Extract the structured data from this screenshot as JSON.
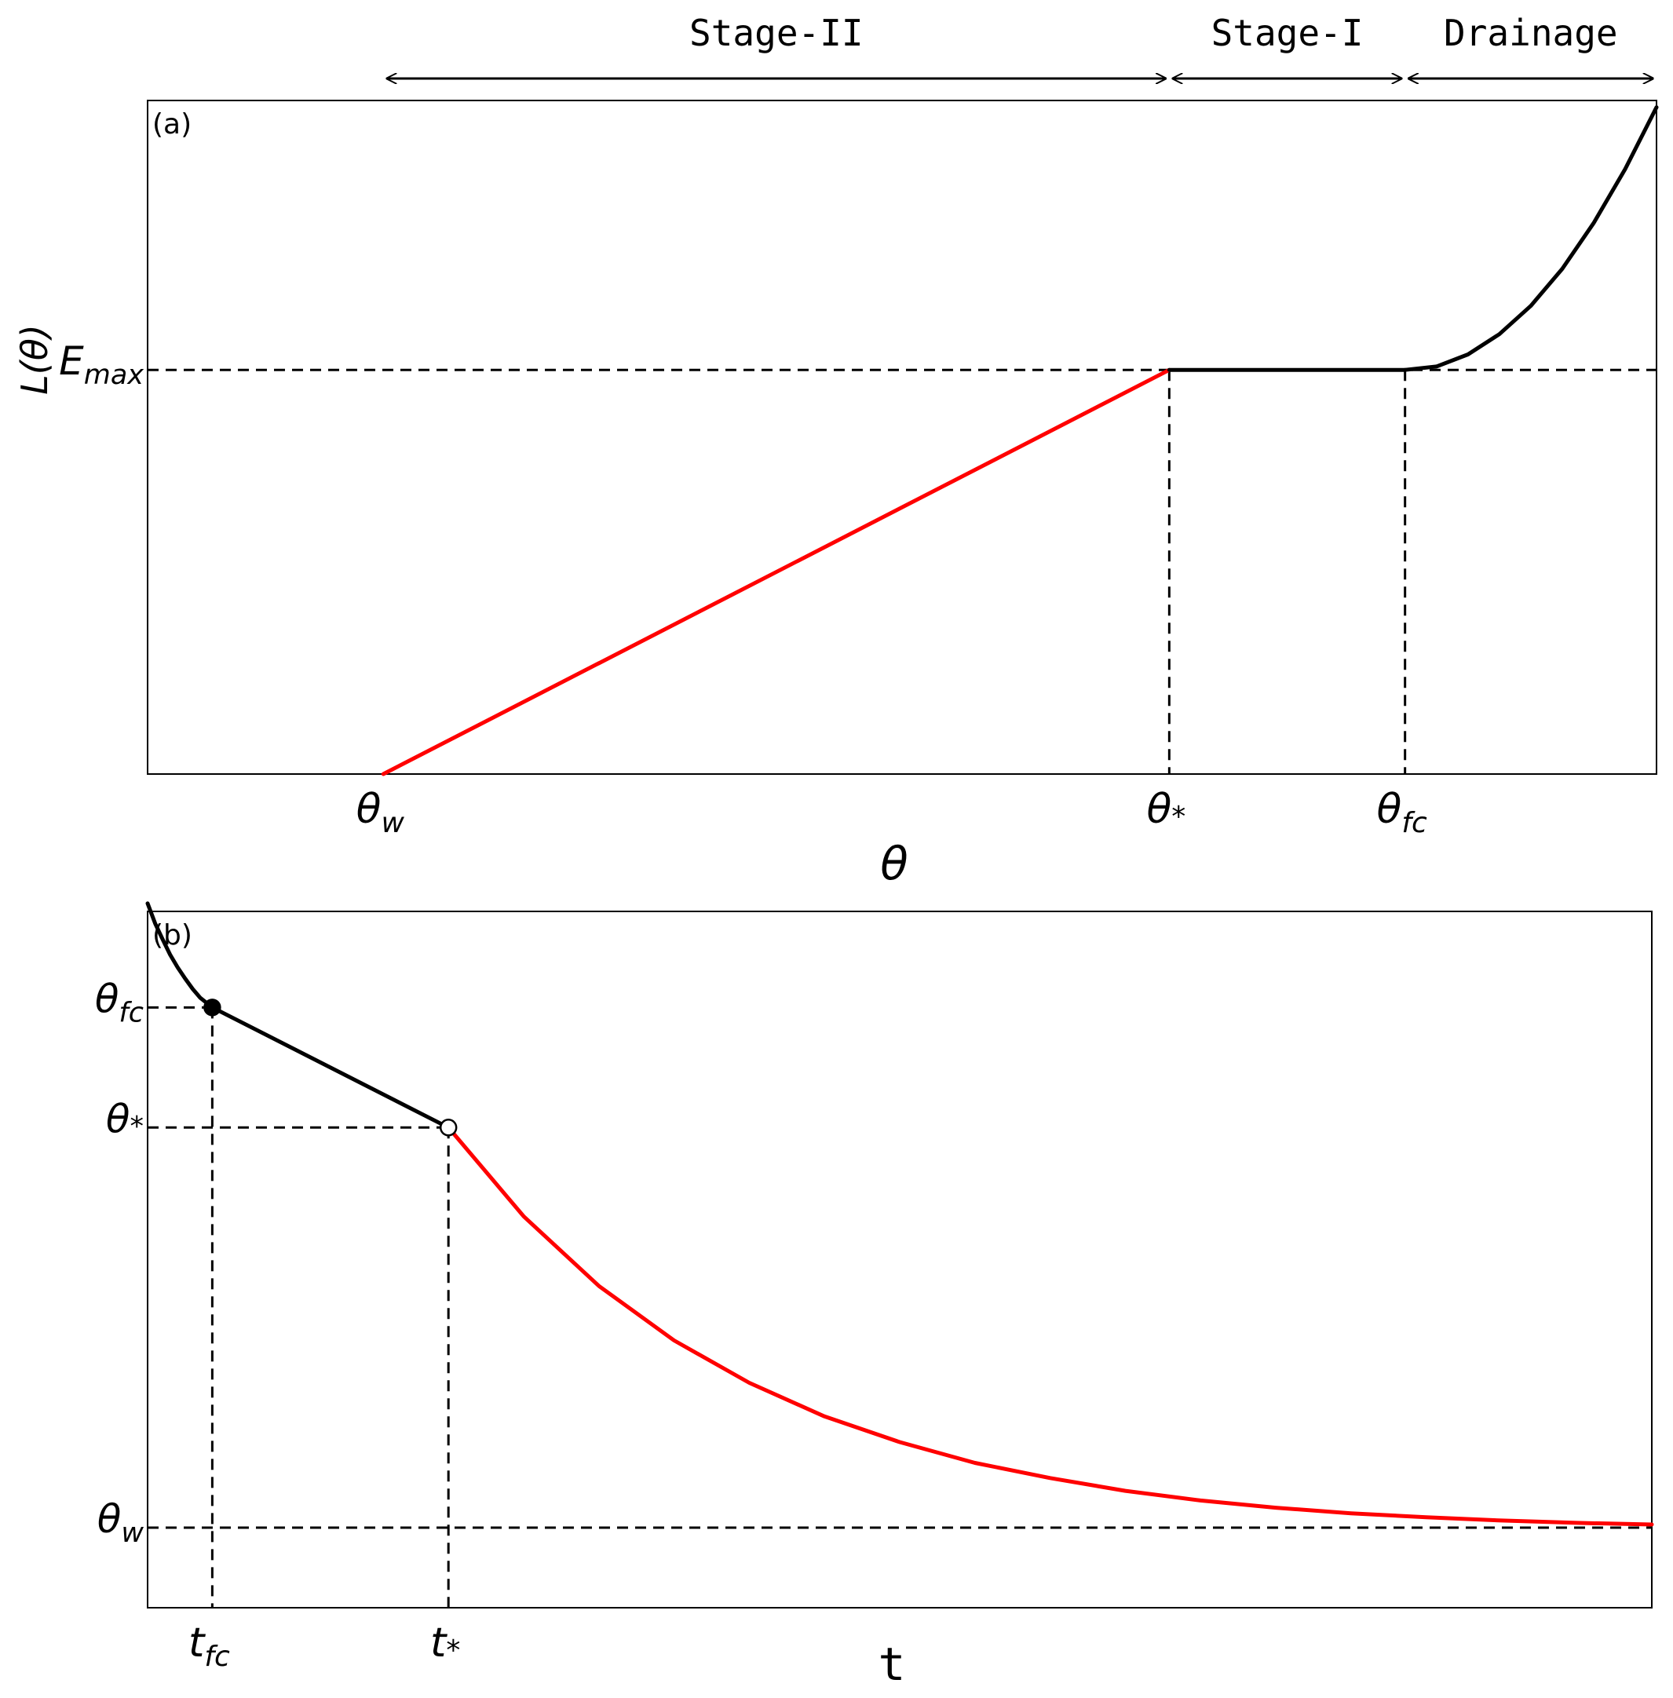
{
  "chart_data": [
    {
      "panel": "(a)",
      "type": "line",
      "xlabel": "θ",
      "ylabel": "L(θ)",
      "x_ticks": [
        {
          "base": "θ",
          "sub": "w",
          "x": 0.15
        },
        {
          "base": "θ",
          "sub": "*",
          "x": 0.65
        },
        {
          "base": "θ",
          "sub": "fc",
          "x": 0.8
        }
      ],
      "y_ticks": [
        {
          "base": "E",
          "sub": "max",
          "y": 0.6
        }
      ],
      "regions": [
        {
          "label": "Stage-II",
          "from": 0.15,
          "to": 0.65
        },
        {
          "label": "Stage-I",
          "from": 0.65,
          "to": 0.8
        },
        {
          "label": "Drainage",
          "from": 0.8,
          "to": 0.96
        }
      ],
      "xlim": [
        0.0,
        0.96
      ],
      "ylim": [
        0.0,
        1.0
      ],
      "series": [
        {
          "color": "#ff0000",
          "x": [
            0.15,
            0.65
          ],
          "y": [
            0.0,
            0.6
          ]
        },
        {
          "color": "#000000",
          "x": [
            0.65,
            0.8
          ],
          "y": [
            0.6,
            0.6
          ]
        },
        {
          "color": "#000000",
          "x": [
            0.8,
            0.82,
            0.84,
            0.86,
            0.88,
            0.9,
            0.92,
            0.94,
            0.96
          ],
          "y": [
            0.6,
            0.605,
            0.623,
            0.653,
            0.695,
            0.75,
            0.818,
            0.898,
            0.99
          ]
        }
      ],
      "guides": {
        "horizontal_at": [
          0.6
        ],
        "vertical_at": [
          0.65,
          0.8
        ]
      },
      "grid": false,
      "legend": "none"
    },
    {
      "panel": "(b)",
      "type": "line",
      "xlabel": "t",
      "ylabel": "",
      "x_ticks": [
        {
          "base": "t",
          "sub": "fc",
          "x": 0.43
        },
        {
          "base": "t",
          "sub": "*",
          "x": 2.0
        }
      ],
      "y_ticks": [
        {
          "base": "θ",
          "sub": "fc",
          "y": 0.8
        },
        {
          "base": "θ",
          "sub": "*",
          "y": 0.65
        },
        {
          "base": "θ",
          "sub": "w",
          "y": 0.15
        }
      ],
      "xlim": [
        0.0,
        10.0
      ],
      "ylim": [
        0.05,
        0.92
      ],
      "series": [
        {
          "color": "#000000",
          "x": [
            0.0,
            0.05,
            0.1,
            0.15,
            0.2,
            0.25,
            0.3,
            0.35,
            0.43
          ],
          "y": [
            0.93,
            0.905,
            0.885,
            0.866,
            0.85,
            0.836,
            0.823,
            0.812,
            0.8
          ]
        },
        {
          "color": "#000000",
          "x": [
            0.43,
            2.0
          ],
          "y": [
            0.8,
            0.65
          ]
        },
        {
          "color": "#ff0000",
          "x": [
            2.0,
            2.5,
            3.0,
            3.5,
            4.0,
            4.5,
            5.0,
            5.5,
            6.0,
            6.5,
            7.0,
            7.5,
            8.0,
            8.5,
            9.0,
            9.5,
            10.0
          ],
          "y": [
            0.65,
            0.539,
            0.452,
            0.384,
            0.331,
            0.289,
            0.257,
            0.231,
            0.212,
            0.196,
            0.184,
            0.175,
            0.168,
            0.163,
            0.159,
            0.156,
            0.154
          ]
        }
      ],
      "markers": [
        {
          "x": 0.43,
          "y": 0.8,
          "style": "filled"
        },
        {
          "x": 2.0,
          "y": 0.65,
          "style": "open"
        }
      ],
      "guides": {
        "horizontal_at": [
          0.8,
          0.65,
          0.15
        ],
        "vertical_at": [
          0.43,
          2.0
        ]
      },
      "grid": false,
      "legend": "none"
    }
  ]
}
